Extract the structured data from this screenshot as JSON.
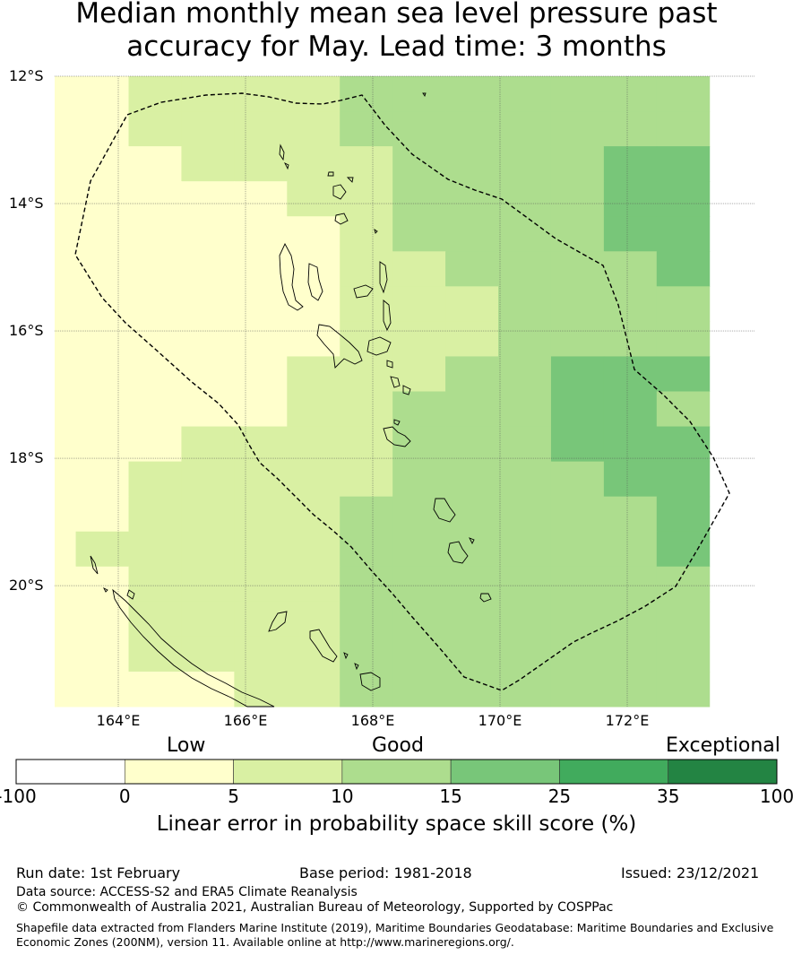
{
  "title_line1": "Median monthly mean sea level pressure past",
  "title_line2": "accuracy for May. Lead time: 3 months",
  "map": {
    "lon_range": [
      163.0,
      174.0
    ],
    "lat_range": [
      -21.9,
      -12.0
    ],
    "grid_cell_deg": 0.83,
    "lat_ticks": [
      {
        "value": -12,
        "label": "12°S"
      },
      {
        "value": -14,
        "label": "14°S"
      },
      {
        "value": -16,
        "label": "16°S"
      },
      {
        "value": -18,
        "label": "18°S"
      },
      {
        "value": -20,
        "label": "20°S"
      }
    ],
    "lon_ticks": [
      {
        "value": 164,
        "label": "164°E"
      },
      {
        "value": 166,
        "label": "166°E"
      },
      {
        "value": 168,
        "label": "168°E"
      },
      {
        "value": 170,
        "label": "170°E"
      },
      {
        "value": 172,
        "label": "172°E"
      }
    ],
    "skill_grid_rows": [
      "0011112222222",
      "0011112222222",
      "0001111222233",
      "0000011222233",
      "0000001222233",
      "0000001122223",
      "0000001112222",
      "0000001112222",
      "0000011122333",
      "0000011222332",
      "0001111222333",
      "0011111222233",
      "0011112222223",
      "0111112222223",
      "0011112222222",
      "0011112222222",
      "0011112222222",
      "0000112222222"
    ]
  },
  "legend": {
    "category_labels": [
      "Low",
      "Good",
      "Exceptional"
    ],
    "bins": [
      {
        "from": -100,
        "to": 0,
        "color": "#ffffff"
      },
      {
        "from": 0,
        "to": 5,
        "color": "#ffffcc"
      },
      {
        "from": 5,
        "to": 10,
        "color": "#d9f0a3"
      },
      {
        "from": 10,
        "to": 15,
        "color": "#addd8e"
      },
      {
        "from": 15,
        "to": 25,
        "color": "#78c679"
      },
      {
        "from": 25,
        "to": 35,
        "color": "#41ab5d"
      },
      {
        "from": 35,
        "to": 100,
        "color": "#238443"
      }
    ],
    "tick_labels": [
      "-100",
      "0",
      "5",
      "10",
      "15",
      "25",
      "35",
      "100"
    ],
    "title": "Linear error in probability space skill score (%)"
  },
  "footer": {
    "run_date": "Run date: 1st February",
    "base_period": "Base period: 1981-2018",
    "issued": "Issued: 23/12/2021",
    "data_source": "Data source: ACCESS-S2 and ERA5 Climate Reanalysis",
    "copyright": "© Commonwealth of Australia 2021, Australian Bureau of Meteorology, Supported by COSPPac",
    "shapefile_line1": "Shapefile data extracted from Flanders Marine Institute (2019), Maritime Boundaries Geodatabase: Maritime Boundaries and Exclusive",
    "shapefile_line2": "Economic Zones (200NM), version 11. Available online at http://www.marineregions.org/."
  }
}
